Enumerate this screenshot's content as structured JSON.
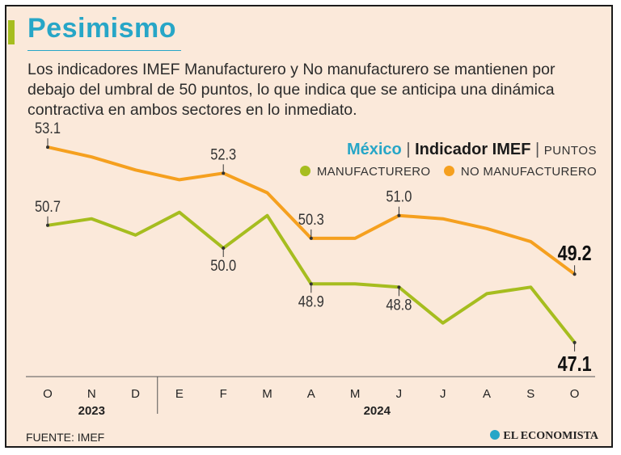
{
  "header": {
    "title": "Pesimismo",
    "subtitle": "Los indicadores IMEF Manufacturero y No manufacturero se mantienen por debajo del umbral de 50 puntos, lo que indica que se anticipa una dinámica contractiva en ambos sectores en lo inmediato."
  },
  "legend": {
    "country": "México",
    "separator": "|",
    "indicator": "Indicador IMEF",
    "unit": "PUNTOS",
    "items": [
      "MANUFACTURERO",
      "NO MANUFACTURERO"
    ]
  },
  "footer": {
    "source": "FUENTE: IMEF",
    "brand": "EL ECONOMISTA"
  },
  "colors": {
    "manufacturero": "#a6bd1f",
    "no_manufacturero": "#f5a01f",
    "accent": "#27a6c7"
  },
  "chart_data": {
    "type": "line",
    "categories": [
      "O",
      "N",
      "D",
      "E",
      "F",
      "M",
      "A",
      "M",
      "J",
      "J",
      "A",
      "S",
      "O"
    ],
    "year_groups": [
      {
        "label": "2023",
        "from": 0,
        "to": 2
      },
      {
        "label": "2024",
        "from": 3,
        "to": 12
      }
    ],
    "series": [
      {
        "name": "MANUFACTURERO",
        "color": "#a6bd1f",
        "values": [
          50.7,
          50.9,
          50.4,
          51.1,
          50.0,
          51.0,
          48.9,
          48.9,
          48.8,
          47.7,
          48.6,
          48.8,
          47.1
        ]
      },
      {
        "name": "NO MANUFACTURERO",
        "color": "#f5a01f",
        "values": [
          53.1,
          52.8,
          52.4,
          52.1,
          52.3,
          51.7,
          50.3,
          50.3,
          51.0,
          50.9,
          50.6,
          50.2,
          49.2
        ]
      }
    ],
    "labels": [
      {
        "series": 0,
        "index": 0,
        "text": "50.7",
        "pos": "above"
      },
      {
        "series": 0,
        "index": 4,
        "text": "50.0",
        "pos": "below"
      },
      {
        "series": 0,
        "index": 6,
        "text": "48.9",
        "pos": "below"
      },
      {
        "series": 0,
        "index": 8,
        "text": "48.8",
        "pos": "below"
      },
      {
        "series": 0,
        "index": 12,
        "text": "47.1",
        "pos": "below",
        "bold": true
      },
      {
        "series": 1,
        "index": 0,
        "text": "53.1",
        "pos": "above"
      },
      {
        "series": 1,
        "index": 4,
        "text": "52.3",
        "pos": "above"
      },
      {
        "series": 1,
        "index": 6,
        "text": "50.3",
        "pos": "above"
      },
      {
        "series": 1,
        "index": 8,
        "text": "51.0",
        "pos": "above"
      },
      {
        "series": 1,
        "index": 12,
        "text": "49.2",
        "pos": "above",
        "bold": true
      }
    ],
    "ylim": [
      46.5,
      53.5
    ],
    "grid": false,
    "legend_position": "top-right",
    "title": "",
    "xlabel": "",
    "ylabel": "PUNTOS"
  }
}
